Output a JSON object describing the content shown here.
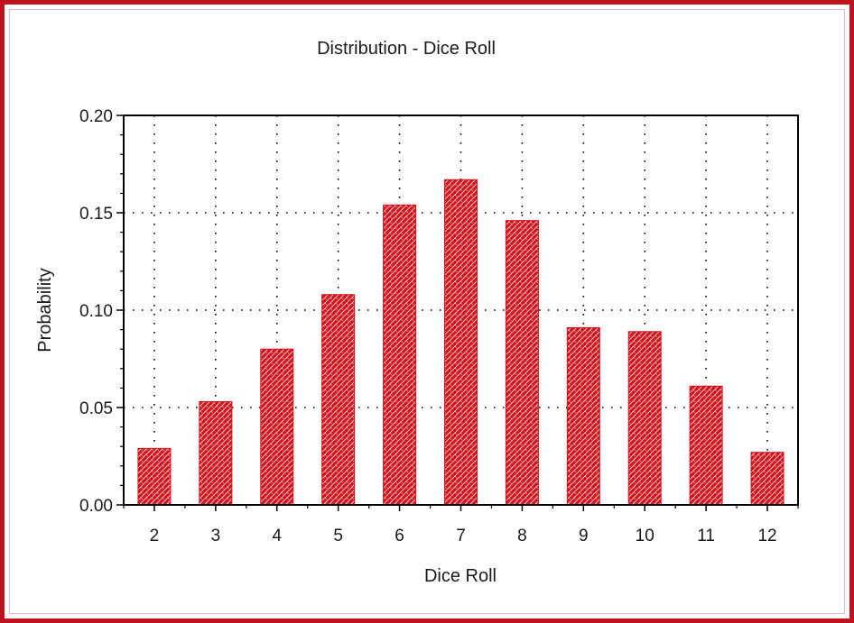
{
  "chart_data": {
    "type": "bar",
    "title": "Distribution - Dice Roll",
    "xlabel": "Dice Roll",
    "ylabel": "Probability",
    "categories": [
      "2",
      "3",
      "4",
      "5",
      "6",
      "7",
      "8",
      "9",
      "10",
      "11",
      "12"
    ],
    "values": [
      0.029,
      0.053,
      0.08,
      0.108,
      0.154,
      0.167,
      0.146,
      0.091,
      0.089,
      0.061,
      0.027
    ],
    "ylim": [
      0,
      0.2
    ],
    "yticks": [
      "0.00",
      "0.05",
      "0.10",
      "0.15",
      "0.20"
    ],
    "ytick_values": [
      0,
      0.05,
      0.1,
      0.15,
      0.2
    ],
    "grid": true,
    "bar_color": "#d4121c",
    "frame_color": "#c0121c"
  }
}
